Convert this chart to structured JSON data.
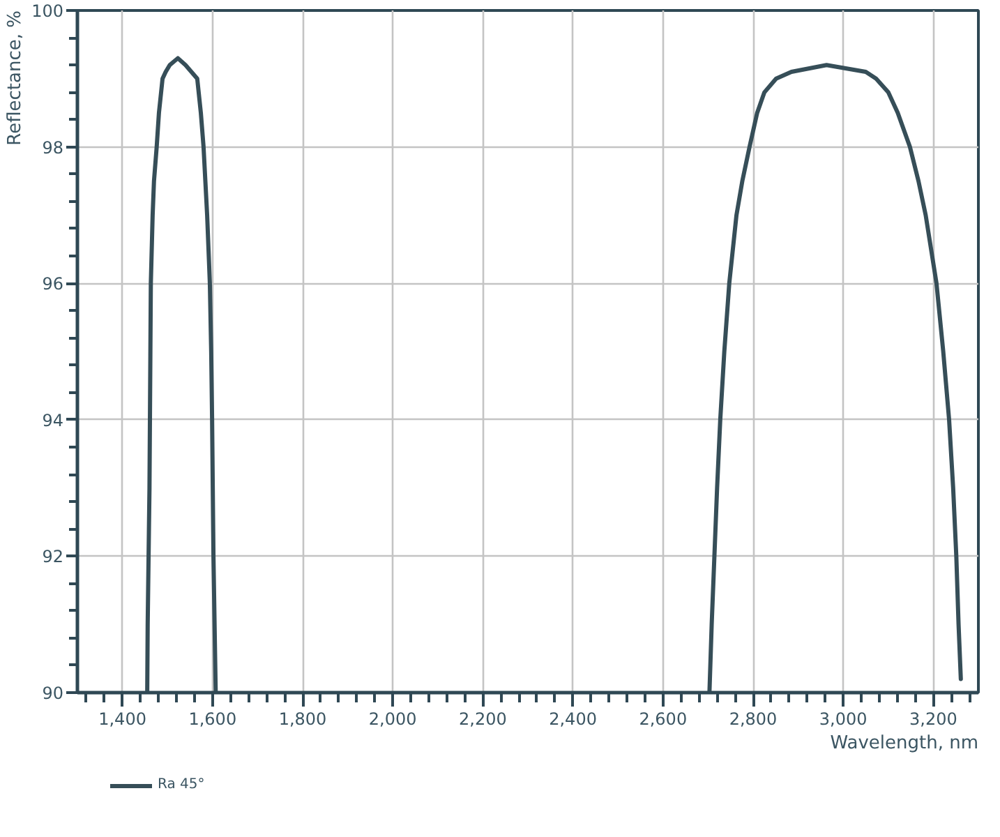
{
  "chart_data": {
    "type": "line",
    "xlabel": "Wavelength, nm",
    "ylabel": "Reflectance, %",
    "xlim": [
      1300,
      3300
    ],
    "ylim": [
      90,
      100
    ],
    "xticks": [
      {
        "value": 1320,
        "label": null
      },
      {
        "value": 1360,
        "label": null
      },
      {
        "value": 1400,
        "label": "1,400"
      },
      {
        "value": 1440,
        "label": null
      },
      {
        "value": 1480,
        "label": null
      },
      {
        "value": 1520,
        "label": null
      },
      {
        "value": 1560,
        "label": null
      },
      {
        "value": 1600,
        "label": "1,600"
      },
      {
        "value": 1640,
        "label": null
      },
      {
        "value": 1680,
        "label": null
      },
      {
        "value": 1720,
        "label": null
      },
      {
        "value": 1760,
        "label": null
      },
      {
        "value": 1800,
        "label": "1,800"
      },
      {
        "value": 1840,
        "label": null
      },
      {
        "value": 1880,
        "label": null
      },
      {
        "value": 1920,
        "label": null
      },
      {
        "value": 1960,
        "label": null
      },
      {
        "value": 2000,
        "label": "2,000"
      },
      {
        "value": 2040,
        "label": null
      },
      {
        "value": 2080,
        "label": null
      },
      {
        "value": 2120,
        "label": null
      },
      {
        "value": 2160,
        "label": null
      },
      {
        "value": 2200,
        "label": "2,200"
      },
      {
        "value": 2240,
        "label": null
      },
      {
        "value": 2280,
        "label": null
      },
      {
        "value": 2320,
        "label": null
      },
      {
        "value": 2360,
        "label": null
      },
      {
        "value": 2400,
        "label": "2,400"
      },
      {
        "value": 2440,
        "label": null
      },
      {
        "value": 2480,
        "label": null
      },
      {
        "value": 2520,
        "label": null
      },
      {
        "value": 2560,
        "label": null
      },
      {
        "value": 2600,
        "label": "2,600"
      },
      {
        "value": 2640,
        "label": null
      },
      {
        "value": 2680,
        "label": null
      },
      {
        "value": 2720,
        "label": null
      },
      {
        "value": 2760,
        "label": null
      },
      {
        "value": 2800,
        "label": "2,800"
      },
      {
        "value": 2840,
        "label": null
      },
      {
        "value": 2880,
        "label": null
      },
      {
        "value": 2920,
        "label": null
      },
      {
        "value": 2960,
        "label": null
      },
      {
        "value": 3000,
        "label": "3,000"
      },
      {
        "value": 3040,
        "label": null
      },
      {
        "value": 3080,
        "label": null
      },
      {
        "value": 3120,
        "label": null
      },
      {
        "value": 3160,
        "label": null
      },
      {
        "value": 3200,
        "label": "3,200"
      },
      {
        "value": 3240,
        "label": null
      },
      {
        "value": 3280,
        "label": null
      }
    ],
    "yticks": [
      90,
      {
        "value": 90.4,
        "label": null
      },
      {
        "value": 90.8,
        "label": null
      },
      {
        "value": 91.2,
        "label": null
      },
      {
        "value": 91.6,
        "label": null
      },
      92,
      {
        "value": 92.4,
        "label": null
      },
      {
        "value": 92.8,
        "label": null
      },
      {
        "value": 93.2,
        "label": null
      },
      {
        "value": 93.6,
        "label": null
      },
      94,
      {
        "value": 94.4,
        "label": null
      },
      {
        "value": 94.8,
        "label": null
      },
      {
        "value": 95.2,
        "label": null
      },
      {
        "value": 95.6,
        "label": null
      },
      96,
      {
        "value": 96.4,
        "label": null
      },
      {
        "value": 96.8,
        "label": null
      },
      {
        "value": 97.2,
        "label": null
      },
      {
        "value": 97.6,
        "label": null
      },
      98,
      {
        "value": 98.4,
        "label": null
      },
      {
        "value": 98.8,
        "label": null
      },
      {
        "value": 99.2,
        "label": null
      },
      {
        "value": 99.6,
        "label": null
      },
      100
    ],
    "grid": true,
    "legend": "bottom left",
    "line_style": "solid",
    "marker": "none",
    "series": [
      {
        "name": "Ra 45°",
        "color": "#364e58",
        "x": [
          1455,
          1456,
          1458,
          1460,
          1461,
          1462,
          1463,
          1467,
          1470,
          1476,
          1481,
          1489,
          1496,
          1505,
          1523,
          1540,
          1553,
          1566,
          1574,
          1580,
          1584,
          1588,
          1594,
          1597,
          1599,
          1602,
          1607,
          2150,
          2703,
          2708,
          2714,
          2720,
          2727,
          2736,
          2747,
          2763,
          2776,
          2792,
          2809,
          2825,
          2851,
          2885,
          2963,
          3050,
          3073,
          3100,
          3121,
          3148,
          3167,
          3183,
          3207,
          3222,
          3235,
          3244,
          3251,
          3256,
          3261
        ],
        "values": [
          90,
          91,
          92,
          93,
          94,
          95,
          96,
          97,
          97.5,
          98,
          98.5,
          99,
          99.1,
          99.2,
          99.3,
          99.2,
          99.1,
          99,
          98.5,
          98,
          97.5,
          97,
          96,
          95,
          94,
          92,
          90,
          null,
          90,
          91,
          92,
          93,
          94,
          95,
          96,
          97,
          97.5,
          98,
          98.5,
          98.8,
          99,
          99.1,
          99.2,
          99.1,
          99,
          98.8,
          98.5,
          98,
          97.5,
          97,
          96,
          95,
          94,
          93,
          92,
          91,
          90.2
        ]
      }
    ]
  }
}
